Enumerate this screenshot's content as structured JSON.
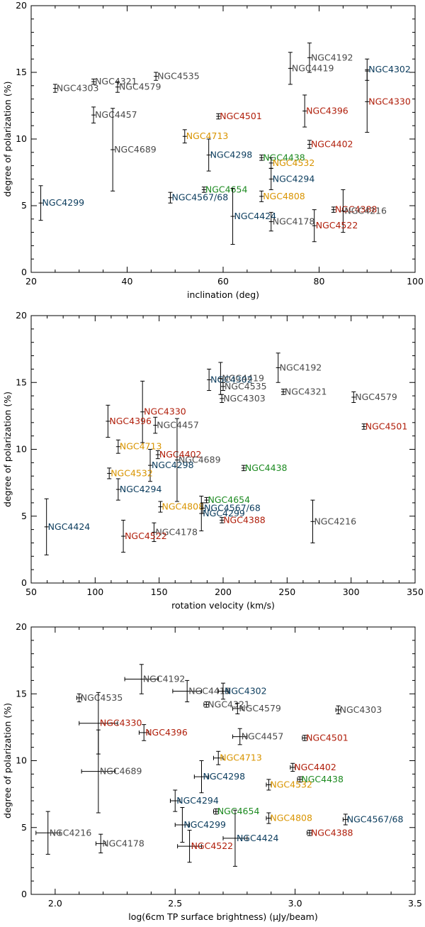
{
  "colors": {
    "gray": "#4a4a4a",
    "blue": "#0b3c5d",
    "red": "#b01e0a",
    "green": "#1c8a20",
    "orange": "#d99400"
  },
  "chart_data": [
    {
      "type": "scatter",
      "xlabel": "inclination (deg)",
      "ylabel": "degree of polarization (%)",
      "xlim": [
        20,
        100
      ],
      "ylim": [
        0,
        20
      ],
      "xticks": [
        "20",
        "40",
        "60",
        "80",
        "100"
      ],
      "yticks": [
        "0",
        "5",
        "10",
        "15",
        "20"
      ],
      "error_bars": true,
      "points": [
        {
          "label": "NGC4192",
          "x": 78,
          "y": 16.1,
          "xerr": 0,
          "yerr": 1.1,
          "color": "gray"
        },
        {
          "label": "NGC4419",
          "x": 74,
          "y": 15.3,
          "xerr": 0,
          "yerr": 1.2,
          "color": "gray"
        },
        {
          "label": "NGC4302",
          "x": 90,
          "y": 15.2,
          "xerr": 0,
          "yerr": 0.8,
          "color": "blue"
        },
        {
          "label": "NGC4535",
          "x": 46,
          "y": 14.7,
          "xerr": 0,
          "yerr": 0.3,
          "color": "gray"
        },
        {
          "label": "NGC4321",
          "x": 33,
          "y": 14.3,
          "xerr": 0,
          "yerr": 0.2,
          "color": "gray"
        },
        {
          "label": "NGC4303",
          "x": 25,
          "y": 13.8,
          "xerr": 0,
          "yerr": 0.3,
          "color": "gray"
        },
        {
          "label": "NGC4579",
          "x": 38,
          "y": 13.9,
          "xerr": 0,
          "yerr": 0.4,
          "color": "gray"
        },
        {
          "label": "NGC4330",
          "x": 90,
          "y": 12.8,
          "xerr": 0,
          "yerr": 2.3,
          "color": "red"
        },
        {
          "label": "NGC4396",
          "x": 77,
          "y": 12.1,
          "xerr": 0,
          "yerr": 1.2,
          "color": "red"
        },
        {
          "label": "NGC4457",
          "x": 33,
          "y": 11.8,
          "xerr": 0,
          "yerr": 0.6,
          "color": "gray"
        },
        {
          "label": "NGC4501",
          "x": 59,
          "y": 11.7,
          "xerr": 0,
          "yerr": 0.2,
          "color": "red"
        },
        {
          "label": "NGC4713",
          "x": 52,
          "y": 10.2,
          "xerr": 0,
          "yerr": 0.5,
          "color": "orange"
        },
        {
          "label": "NGC4402",
          "x": 78,
          "y": 9.6,
          "xerr": 0,
          "yerr": 0.3,
          "color": "red"
        },
        {
          "label": "NGC4689",
          "x": 37,
          "y": 9.2,
          "xerr": 0,
          "yerr": 3.1,
          "color": "gray"
        },
        {
          "label": "NGC4298",
          "x": 57,
          "y": 8.8,
          "xerr": 0,
          "yerr": 1.2,
          "color": "blue"
        },
        {
          "label": "NGC4438",
          "x": 68,
          "y": 8.6,
          "xerr": 0,
          "yerr": 0.2,
          "color": "green"
        },
        {
          "label": "NGC4532",
          "x": 70,
          "y": 8.2,
          "xerr": 0,
          "yerr": 0.4,
          "color": "orange"
        },
        {
          "label": "NGC4294",
          "x": 70,
          "y": 7.0,
          "xerr": 0,
          "yerr": 0.8,
          "color": "blue"
        },
        {
          "label": "NGC4654",
          "x": 56,
          "y": 6.2,
          "xerr": 0,
          "yerr": 0.2,
          "color": "green"
        },
        {
          "label": "NGC4808",
          "x": 68,
          "y": 5.7,
          "xerr": 0,
          "yerr": 0.4,
          "color": "orange"
        },
        {
          "label": "NGC4567/68",
          "x": 49,
          "y": 5.6,
          "xerr": 0,
          "yerr": 0.4,
          "color": "blue"
        },
        {
          "label": "NGC4299",
          "x": 22,
          "y": 5.2,
          "xerr": 0,
          "yerr": 1.3,
          "color": "blue"
        },
        {
          "label": "NGC4388",
          "x": 83,
          "y": 4.7,
          "xerr": 0,
          "yerr": 0.2,
          "color": "red"
        },
        {
          "label": "NGC4216",
          "x": 85,
          "y": 4.6,
          "xerr": 0,
          "yerr": 1.6,
          "color": "gray"
        },
        {
          "label": "NGC4424",
          "x": 62,
          "y": 4.2,
          "xerr": 0,
          "yerr": 2.1,
          "color": "blue"
        },
        {
          "label": "NGC4178",
          "x": 70,
          "y": 3.8,
          "xerr": 0,
          "yerr": 0.7,
          "color": "gray"
        },
        {
          "label": "NGC4522",
          "x": 79,
          "y": 3.5,
          "xerr": 0,
          "yerr": 1.2,
          "color": "red"
        }
      ]
    },
    {
      "type": "scatter",
      "xlabel": "rotation velocity (km/s)",
      "ylabel": "degree of polarization (%)",
      "xlim": [
        50,
        350
      ],
      "ylim": [
        0,
        20
      ],
      "xticks": [
        "50",
        "100",
        "150",
        "200",
        "250",
        "300",
        "350"
      ],
      "yticks": [
        "0",
        "5",
        "10",
        "15",
        "20"
      ],
      "error_bars": true,
      "points": [
        {
          "label": "NGC4192",
          "x": 243,
          "y": 16.1,
          "xerr": 0,
          "yerr": 1.1,
          "color": "gray"
        },
        {
          "label": "NGC4419",
          "x": 198,
          "y": 15.3,
          "xerr": 0,
          "yerr": 1.2,
          "color": "gray"
        },
        {
          "label": "NGC4302",
          "x": 189,
          "y": 15.2,
          "xerr": 0,
          "yerr": 0.8,
          "color": "blue"
        },
        {
          "label": "NGC4535",
          "x": 200,
          "y": 14.7,
          "xerr": 0,
          "yerr": 0.3,
          "color": "gray"
        },
        {
          "label": "NGC4321",
          "x": 247,
          "y": 14.3,
          "xerr": 0,
          "yerr": 0.2,
          "color": "gray"
        },
        {
          "label": "NGC4303",
          "x": 199,
          "y": 13.8,
          "xerr": 0,
          "yerr": 0.3,
          "color": "gray"
        },
        {
          "label": "NGC4579",
          "x": 302,
          "y": 13.9,
          "xerr": 0,
          "yerr": 0.4,
          "color": "gray"
        },
        {
          "label": "NGC4330",
          "x": 137,
          "y": 12.8,
          "xerr": 0,
          "yerr": 2.3,
          "color": "red"
        },
        {
          "label": "NGC4396",
          "x": 110,
          "y": 12.1,
          "xerr": 0,
          "yerr": 1.2,
          "color": "red"
        },
        {
          "label": "NGC4457",
          "x": 147,
          "y": 11.8,
          "xerr": 0,
          "yerr": 0.6,
          "color": "gray"
        },
        {
          "label": "NGC4501",
          "x": 310,
          "y": 11.7,
          "xerr": 0,
          "yerr": 0.2,
          "color": "red"
        },
        {
          "label": "NGC4713",
          "x": 118,
          "y": 10.2,
          "xerr": 0,
          "yerr": 0.5,
          "color": "orange"
        },
        {
          "label": "NGC4402",
          "x": 149,
          "y": 9.6,
          "xerr": 0,
          "yerr": 0.3,
          "color": "red"
        },
        {
          "label": "NGC4689",
          "x": 164,
          "y": 9.2,
          "xerr": 0,
          "yerr": 3.1,
          "color": "gray"
        },
        {
          "label": "NGC4298",
          "x": 143,
          "y": 8.8,
          "xerr": 0,
          "yerr": 1.2,
          "color": "blue"
        },
        {
          "label": "NGC4438",
          "x": 216,
          "y": 8.6,
          "xerr": 0,
          "yerr": 0.2,
          "color": "green"
        },
        {
          "label": "NGC4532",
          "x": 111,
          "y": 8.2,
          "xerr": 0,
          "yerr": 0.4,
          "color": "orange"
        },
        {
          "label": "NGC4294",
          "x": 118,
          "y": 7.0,
          "xerr": 0,
          "yerr": 0.8,
          "color": "blue"
        },
        {
          "label": "NGC4654",
          "x": 187,
          "y": 6.2,
          "xerr": 0,
          "yerr": 0.2,
          "color": "green"
        },
        {
          "label": "NGC4808",
          "x": 151,
          "y": 5.7,
          "xerr": 0,
          "yerr": 0.4,
          "color": "orange"
        },
        {
          "label": "NGC4567/68",
          "x": 184,
          "y": 5.6,
          "xerr": 0,
          "yerr": 0.4,
          "color": "blue"
        },
        {
          "label": "NGC4299",
          "x": 183,
          "y": 5.2,
          "xerr": 0,
          "yerr": 1.3,
          "color": "blue"
        },
        {
          "label": "NGC4388",
          "x": 199,
          "y": 4.7,
          "xerr": 0,
          "yerr": 0.2,
          "color": "red"
        },
        {
          "label": "NGC4216",
          "x": 270,
          "y": 4.6,
          "xerr": 0,
          "yerr": 1.6,
          "color": "gray"
        },
        {
          "label": "NGC4424",
          "x": 62,
          "y": 4.2,
          "xerr": 0,
          "yerr": 2.1,
          "color": "blue"
        },
        {
          "label": "NGC4178",
          "x": 146,
          "y": 3.8,
          "xerr": 0,
          "yerr": 0.7,
          "color": "gray"
        },
        {
          "label": "NGC4522",
          "x": 122,
          "y": 3.5,
          "xerr": 0,
          "yerr": 1.2,
          "color": "red"
        }
      ]
    },
    {
      "type": "scatter",
      "xlabel": "log(6cm TP surface brightness) (μJy/beam)",
      "ylabel": "degree of polarization (%)",
      "xlim": [
        1.9,
        3.5
      ],
      "ylim": [
        0,
        20
      ],
      "xticks": [
        "2.0",
        "2.5",
        "3.0",
        "3.5"
      ],
      "yticks": [
        "0",
        "5",
        "10",
        "15",
        "20"
      ],
      "error_bars": true,
      "points": [
        {
          "label": "NGC4192",
          "x": 2.36,
          "y": 16.1,
          "xerr": 0.07,
          "yerr": 1.1,
          "color": "gray"
        },
        {
          "label": "NGC4419",
          "x": 2.55,
          "y": 15.2,
          "xerr": 0.06,
          "yerr": 0.8,
          "color": "gray"
        },
        {
          "label": "NGC4302",
          "x": 2.7,
          "y": 15.2,
          "xerr": 0.02,
          "yerr": 0.6,
          "color": "blue"
        },
        {
          "label": "NGC4535",
          "x": 2.1,
          "y": 14.7,
          "xerr": 0.01,
          "yerr": 0.3,
          "color": "gray"
        },
        {
          "label": "NGC4321",
          "x": 2.63,
          "y": 14.2,
          "xerr": 0.01,
          "yerr": 0.2,
          "color": "gray"
        },
        {
          "label": "NGC4579",
          "x": 2.76,
          "y": 13.9,
          "xerr": 0.02,
          "yerr": 0.4,
          "color": "gray"
        },
        {
          "label": "NGC4303",
          "x": 3.18,
          "y": 13.8,
          "xerr": 0.01,
          "yerr": 0.3,
          "color": "gray"
        },
        {
          "label": "NGC4330",
          "x": 2.18,
          "y": 12.8,
          "xerr": 0.08,
          "yerr": 2.3,
          "color": "red"
        },
        {
          "label": "NGC4396",
          "x": 2.37,
          "y": 12.1,
          "xerr": 0.02,
          "yerr": 0.6,
          "color": "red"
        },
        {
          "label": "NGC4457",
          "x": 2.77,
          "y": 11.8,
          "xerr": 0.03,
          "yerr": 0.6,
          "color": "gray"
        },
        {
          "label": "NGC4501",
          "x": 3.04,
          "y": 11.7,
          "xerr": 0.01,
          "yerr": 0.2,
          "color": "red"
        },
        {
          "label": "NGC4713",
          "x": 2.68,
          "y": 10.2,
          "xerr": 0.02,
          "yerr": 0.5,
          "color": "orange"
        },
        {
          "label": "NGC4402",
          "x": 2.99,
          "y": 9.5,
          "xerr": 0.01,
          "yerr": 0.3,
          "color": "red"
        },
        {
          "label": "NGC4689",
          "x": 2.18,
          "y": 9.2,
          "xerr": 0.07,
          "yerr": 3.1,
          "color": "gray"
        },
        {
          "label": "NGC4298",
          "x": 2.61,
          "y": 8.8,
          "xerr": 0.03,
          "yerr": 1.2,
          "color": "blue"
        },
        {
          "label": "NGC4438",
          "x": 3.02,
          "y": 8.6,
          "xerr": 0.01,
          "yerr": 0.2,
          "color": "green"
        },
        {
          "label": "NGC4532",
          "x": 2.89,
          "y": 8.2,
          "xerr": 0.01,
          "yerr": 0.4,
          "color": "orange"
        },
        {
          "label": "NGC4294",
          "x": 2.5,
          "y": 7.0,
          "xerr": 0.02,
          "yerr": 0.8,
          "color": "blue"
        },
        {
          "label": "NGC4654",
          "x": 2.67,
          "y": 6.2,
          "xerr": 0.01,
          "yerr": 0.2,
          "color": "green"
        },
        {
          "label": "NGC4808",
          "x": 2.89,
          "y": 5.7,
          "xerr": 0.01,
          "yerr": 0.4,
          "color": "orange"
        },
        {
          "label": "NGC4567/68",
          "x": 3.21,
          "y": 5.6,
          "xerr": 0.01,
          "yerr": 0.4,
          "color": "blue"
        },
        {
          "label": "NGC4299",
          "x": 2.53,
          "y": 5.2,
          "xerr": 0.03,
          "yerr": 1.3,
          "color": "blue"
        },
        {
          "label": "NGC4388",
          "x": 3.06,
          "y": 4.6,
          "xerr": 0.01,
          "yerr": 0.2,
          "color": "red"
        },
        {
          "label": "NGC4216",
          "x": 1.97,
          "y": 4.6,
          "xerr": 0.05,
          "yerr": 1.6,
          "color": "gray"
        },
        {
          "label": "NGC4424",
          "x": 2.75,
          "y": 4.2,
          "xerr": 0.05,
          "yerr": 2.1,
          "color": "blue"
        },
        {
          "label": "NGC4178",
          "x": 2.19,
          "y": 3.8,
          "xerr": 0.02,
          "yerr": 0.7,
          "color": "gray"
        },
        {
          "label": "NGC4522",
          "x": 2.56,
          "y": 3.6,
          "xerr": 0.05,
          "yerr": 1.2,
          "color": "red"
        }
      ]
    }
  ]
}
